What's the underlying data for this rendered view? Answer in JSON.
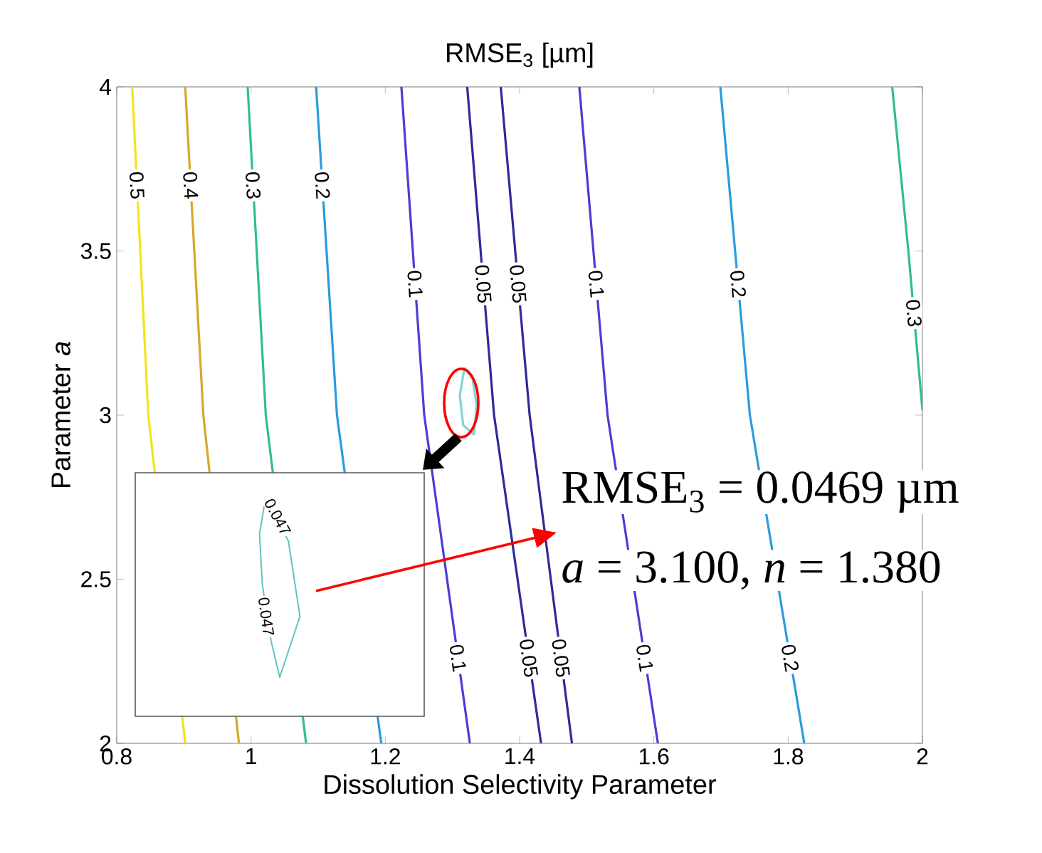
{
  "chart_data": [
    {
      "type": "line",
      "title": "RMSE$_{3}$ [µm]",
      "xlabel": "Dissolution Selectivity Parameter",
      "ylabel": "Parameter  *a*",
      "xlim": [
        0.8,
        2
      ],
      "ylim": [
        2,
        4
      ],
      "xticks": [
        0.8,
        1,
        1.2,
        1.4,
        1.6,
        1.8,
        2
      ],
      "yticks": [
        2,
        2.5,
        3,
        3.5,
        4
      ],
      "grid": false,
      "line_style": "solid",
      "annotations": [
        "RMSE$_{3}$ = 0.0469 µm",
        "*a* = 3.100,  *n* = 1.380"
      ],
      "series": [
        {
          "name": "0.5",
          "color": "#f2e31c",
          "x": [
            0.823,
            0.847,
            0.902
          ],
          "values": [
            4,
            3,
            2
          ]
        },
        {
          "name": "0.4",
          "color": "#d4aa2c",
          "x": [
            0.902,
            0.929,
            0.982
          ],
          "values": [
            4,
            3,
            2
          ]
        },
        {
          "name": "0.3",
          "color": "#30bf8c",
          "x": [
            0.995,
            1.022,
            1.082
          ],
          "values": [
            4,
            3,
            2
          ]
        },
        {
          "name": "0.2",
          "color": "#2b9be0",
          "x": [
            1.097,
            1.128,
            1.194
          ],
          "values": [
            4,
            3,
            2
          ]
        },
        {
          "name": "0.1",
          "color": "#4a3ed6",
          "x": [
            1.224,
            1.258,
            1.326
          ],
          "values": [
            4,
            3,
            2
          ]
        },
        {
          "name": "0.05",
          "color": "#2e2a9c",
          "x": [
            1.322,
            1.362,
            1.432
          ],
          "values": [
            4,
            3,
            2
          ]
        },
        {
          "name": "0.05",
          "color": "#2e2a9c",
          "x": [
            1.372,
            1.415,
            1.478
          ],
          "values": [
            4,
            3,
            2
          ]
        },
        {
          "name": "0.1",
          "color": "#4a3ed6",
          "x": [
            1.489,
            1.531,
            1.606
          ],
          "values": [
            4,
            3,
            2
          ]
        },
        {
          "name": "0.2",
          "color": "#2b9be0",
          "x": [
            1.699,
            1.743,
            1.824
          ],
          "values": [
            4,
            3,
            2
          ]
        },
        {
          "name": "0.3",
          "color": "#30bf8c",
          "x": [
            1.955,
            1.979,
            2.0
          ],
          "values": [
            4,
            3.5,
            3.015
          ]
        },
        {
          "color": "#7fd3d3",
          "x": [
            1.318,
            1.311,
            1.316,
            1.332
          ],
          "values": [
            3.145,
            3.06,
            2.97,
            2.94
          ]
        },
        {
          "color": "#7fd3d3",
          "x": [
            1.318,
            1.33,
            1.336,
            1.332
          ],
          "values": [
            3.145,
            3.11,
            3.03,
            2.94
          ]
        }
      ]
    },
    {
      "type": "other",
      "annotations": [
        "0.047",
        "0.047"
      ]
    }
  ]
}
